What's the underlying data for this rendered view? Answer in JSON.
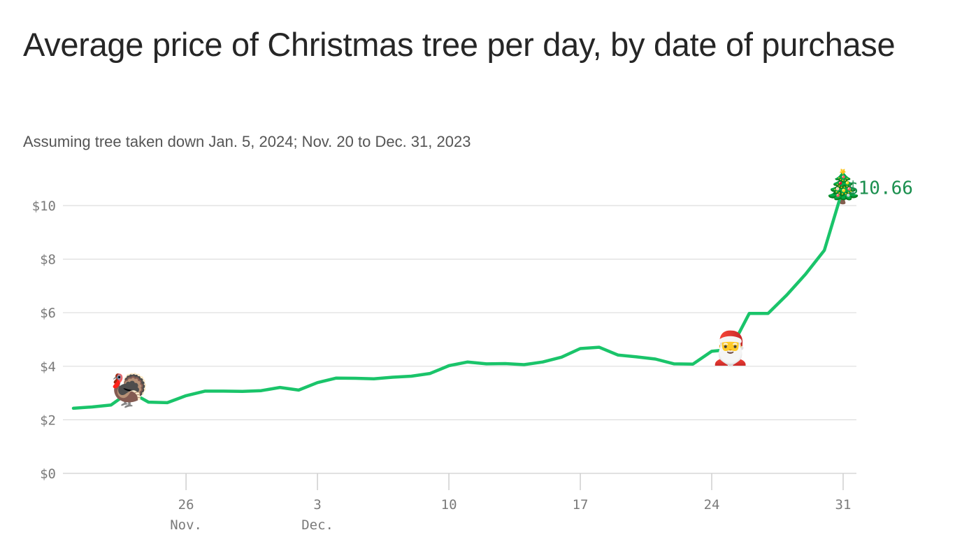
{
  "title": "Average price of Christmas tree per day, by date of purchase",
  "subtitle": "Assuming tree taken down Jan. 5, 2024; Nov. 20 to Dec. 31, 2023",
  "colors": {
    "line": "#1ac46a",
    "end_label": "#1a8f4e",
    "grid": "#dedede",
    "axis": "#cfcfcf"
  },
  "chart_data": {
    "type": "line",
    "title": "Average price of Christmas tree per day, by date of purchase",
    "subtitle": "Assuming tree taken down Jan. 5, 2024; Nov. 20 to Dec. 31, 2023",
    "x": [
      "2023-11-20",
      "2023-11-21",
      "2023-11-22",
      "2023-11-23",
      "2023-11-24",
      "2023-11-25",
      "2023-11-26",
      "2023-11-27",
      "2023-11-28",
      "2023-11-29",
      "2023-11-30",
      "2023-12-01",
      "2023-12-02",
      "2023-12-03",
      "2023-12-04",
      "2023-12-05",
      "2023-12-06",
      "2023-12-07",
      "2023-12-08",
      "2023-12-09",
      "2023-12-10",
      "2023-12-11",
      "2023-12-12",
      "2023-12-13",
      "2023-12-14",
      "2023-12-15",
      "2023-12-16",
      "2023-12-17",
      "2023-12-18",
      "2023-12-19",
      "2023-12-20",
      "2023-12-21",
      "2023-12-22",
      "2023-12-23",
      "2023-12-24",
      "2023-12-25",
      "2023-12-26",
      "2023-12-27",
      "2023-12-28",
      "2023-12-29",
      "2023-12-30",
      "2023-12-31"
    ],
    "series": [
      {
        "values": [
          2.43,
          2.48,
          2.55,
          3.05,
          2.66,
          2.64,
          2.9,
          3.07,
          3.07,
          3.06,
          3.09,
          3.21,
          3.11,
          3.39,
          3.56,
          3.55,
          3.53,
          3.59,
          3.63,
          3.73,
          4.02,
          4.16,
          4.09,
          4.1,
          4.06,
          4.16,
          4.34,
          4.66,
          4.71,
          4.42,
          4.35,
          4.27,
          4.09,
          4.08,
          4.56,
          4.63,
          5.97,
          5.97,
          6.66,
          7.44,
          8.33,
          10.66
        ]
      }
    ],
    "xticks": [
      {
        "date": "2023-11-26",
        "label": "26",
        "sublabel": "Nov."
      },
      {
        "date": "2023-12-03",
        "label": "3",
        "sublabel": "Dec."
      },
      {
        "date": "2023-12-10",
        "label": "10",
        "sublabel": ""
      },
      {
        "date": "2023-12-17",
        "label": "17",
        "sublabel": ""
      },
      {
        "date": "2023-12-24",
        "label": "24",
        "sublabel": ""
      },
      {
        "date": "2023-12-31",
        "label": "31",
        "sublabel": ""
      }
    ],
    "yticks": [
      {
        "value": 0,
        "label": "$0"
      },
      {
        "value": 2,
        "label": "$2"
      },
      {
        "value": 4,
        "label": "$4"
      },
      {
        "value": 6,
        "label": "$6"
      },
      {
        "value": 8,
        "label": "$8"
      },
      {
        "value": 10,
        "label": "$10"
      }
    ],
    "ylim": [
      0,
      10.5
    ],
    "grid": true,
    "annotations": [
      {
        "date": "2023-11-23",
        "glyph": "🦃",
        "name": "turkey-icon"
      },
      {
        "date": "2023-12-25",
        "glyph": "🎅",
        "name": "santa-icon"
      },
      {
        "date": "2023-12-31",
        "glyph": "🎄",
        "name": "christmas-tree-icon"
      }
    ],
    "end_label": "$10.66"
  }
}
